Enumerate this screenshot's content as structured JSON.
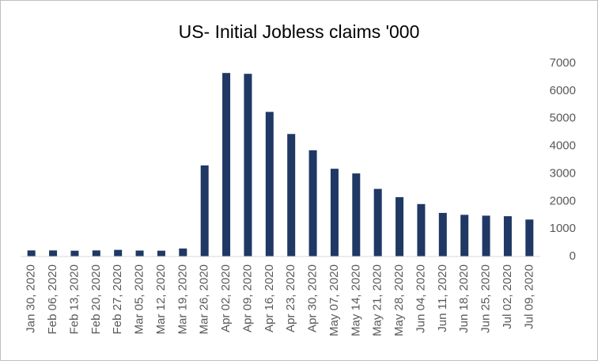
{
  "chart_data": {
    "type": "bar",
    "title": "US- Initial Jobless claims '000",
    "categories": [
      "Jan 30, 2020",
      "Feb 06, 2020",
      "Feb 13, 2020",
      "Feb 20, 2020",
      "Feb 27, 2020",
      "Mar 05, 2020",
      "Mar 12, 2020",
      "Mar 19, 2020",
      "Mar 26, 2020",
      "Apr 02, 2020",
      "Apr 09, 2020",
      "Apr 16, 2020",
      "Apr 23, 2020",
      "Apr 30, 2020",
      "May 07, 2020",
      "May 14, 2020",
      "May 21, 2020",
      "May 28, 2020",
      "Jun 04, 2020",
      "Jun 11, 2020",
      "Jun 18, 2020",
      "Jun 25, 2020",
      "Jul 02, 2020",
      "Jul 09, 2020"
    ],
    "values": [
      220,
      220,
      210,
      220,
      240,
      216,
      211,
      290,
      3300,
      6650,
      6620,
      5240,
      4440,
      3850,
      3180,
      3010,
      2450,
      2150,
      1900,
      1580,
      1510,
      1480,
      1460,
      1340
    ],
    "color": "#1f3864",
    "ylim": [
      0,
      7000
    ],
    "yticks": [
      0,
      1000,
      2000,
      3000,
      4000,
      5000,
      6000,
      7000
    ],
    "grid": false
  }
}
